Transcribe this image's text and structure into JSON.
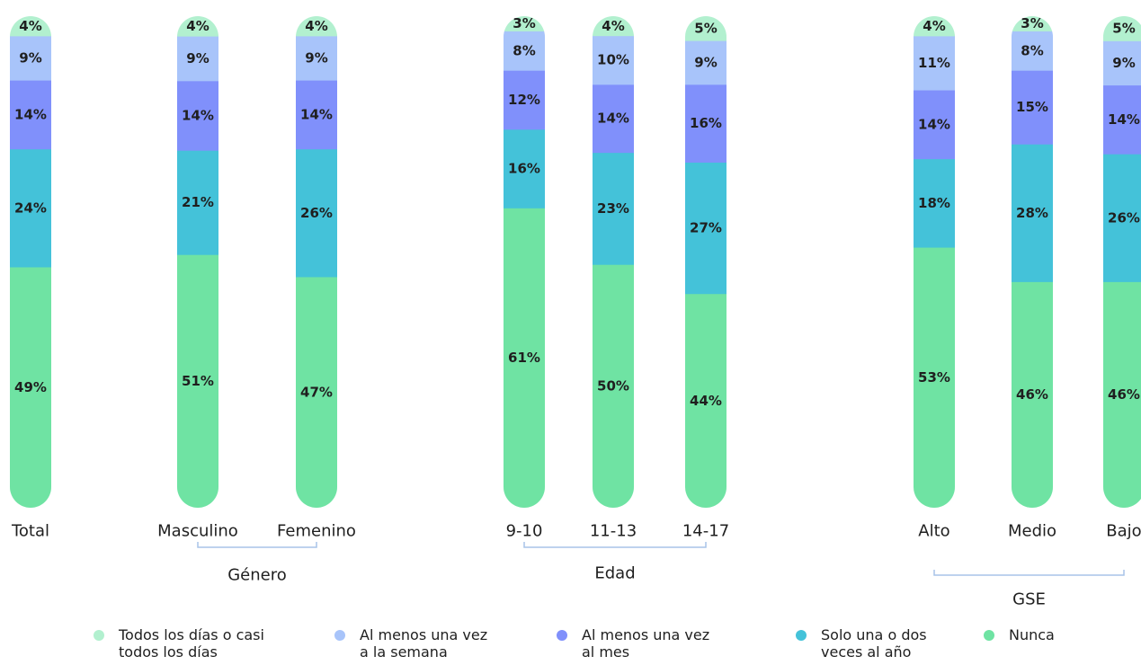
{
  "chart_data": {
    "type": "bar",
    "stacked": true,
    "orientation": "vertical",
    "categories": [
      "Total",
      "Masculino",
      "Femenino",
      "9-10",
      "11-13",
      "14-17",
      "Alto",
      "Medio",
      "Bajo"
    ],
    "groups": [
      {
        "label": "",
        "categories": [
          "Total"
        ]
      },
      {
        "label": "Género",
        "categories": [
          "Masculino",
          "Femenino"
        ]
      },
      {
        "label": "Edad",
        "categories": [
          "9-10",
          "11-13",
          "14-17"
        ]
      },
      {
        "label": "GSE",
        "categories": [
          "Alto",
          "Medio",
          "Bajo"
        ]
      }
    ],
    "series": [
      {
        "name": "Nunca",
        "color": "#6fe3a3",
        "values": [
          49,
          51,
          47,
          61,
          50,
          44,
          53,
          46,
          46
        ]
      },
      {
        "name": "Solo una o dos veces al año",
        "color": "#44c2d9",
        "values": [
          24,
          21,
          26,
          16,
          23,
          27,
          18,
          28,
          26
        ]
      },
      {
        "name": "Al menos una vez al mes",
        "color": "#8090fb",
        "values": [
          14,
          14,
          14,
          12,
          14,
          16,
          14,
          15,
          14
        ]
      },
      {
        "name": "Al menos una vez a la semana",
        "color": "#a8c4fa",
        "values": [
          9,
          9,
          9,
          8,
          10,
          9,
          11,
          8,
          9
        ]
      },
      {
        "name": "Todos los días o casi todos los días",
        "color": "#b2f0cf",
        "values": [
          4,
          4,
          4,
          3,
          4,
          5,
          4,
          3,
          5
        ]
      }
    ],
    "value_suffix": "%",
    "legend": {
      "position": "bottom",
      "items": [
        {
          "label": "Todos los días o casi\ntodos los días",
          "color": "#b2f0cf"
        },
        {
          "label": "Al menos una vez\na la semana",
          "color": "#a8c4fa"
        },
        {
          "label": "Al menos una vez\nal mes",
          "color": "#8090fb"
        },
        {
          "label": "Solo una o dos\nveces al año",
          "color": "#44c2d9"
        },
        {
          "label": "Nunca",
          "color": "#6fe3a3"
        }
      ]
    }
  }
}
